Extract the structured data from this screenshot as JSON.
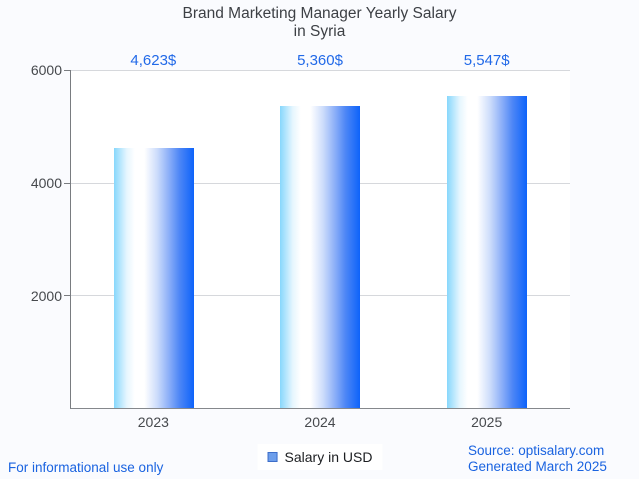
{
  "title": {
    "line1": "Brand Marketing Manager Yearly Salary",
    "line2": "in Syria"
  },
  "chart_data": {
    "type": "bar",
    "categories": [
      "2023",
      "2024",
      "2025"
    ],
    "values": [
      4623,
      5360,
      5547
    ],
    "value_labels": [
      "4,623$",
      "5,360$",
      "5,547$"
    ],
    "series_name": "Salary in USD",
    "title": "Brand Marketing Manager Yearly Salary in Syria",
    "xlabel": "",
    "ylabel": "",
    "ylim": [
      0,
      6000
    ],
    "yticks": [
      6000,
      4000,
      2000
    ],
    "grid": true,
    "legend_position": "bottom"
  },
  "legend": {
    "label": "Salary in USD"
  },
  "footer": {
    "left": "For informational use only",
    "source": "Source: optisalary.com",
    "generated": "Generated March 2025"
  },
  "colors": {
    "background": "#fafbfe",
    "plot_background": "#ffffff",
    "bar_gradient_left": "#87d7fc",
    "bar_gradient_mid": "#ffffff",
    "bar_gradient_right": "#0d63fa",
    "value_label": "#2169e8",
    "footer_text": "#1a63e0",
    "axis_line": "#797c80",
    "gridline": "#d6d8dc",
    "tick_label": "#46494d",
    "title_text": "#3d4045",
    "legend_swatch_fill": "#6d9eeb",
    "legend_swatch_border": "#3d6ec9"
  }
}
